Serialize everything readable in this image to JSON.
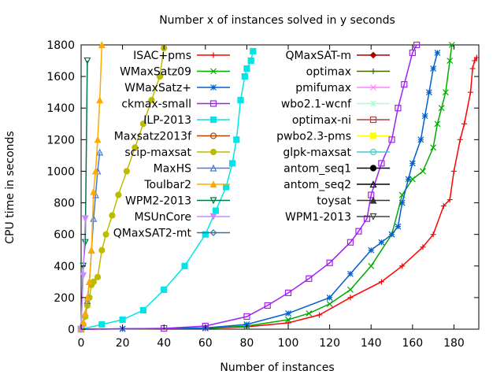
{
  "chart_data": {
    "type": "line",
    "title": "Number x of instances solved in y seconds",
    "xlabel": "Number of instances",
    "ylabel": "CPU time in seconds",
    "xlim": [
      0,
      192
    ],
    "ylim": [
      0,
      1800
    ],
    "xticks": [
      0,
      20,
      40,
      60,
      80,
      100,
      120,
      140,
      160,
      180
    ],
    "yticks": [
      0,
      200,
      400,
      600,
      800,
      1000,
      1200,
      1400,
      1600,
      1800
    ],
    "grid": false,
    "legend_position": "top, two columns",
    "series": [
      {
        "name": "ISAC+pms",
        "color": "#ff0000",
        "marker": "plus",
        "x": [
          0,
          20,
          60,
          80,
          100,
          115,
          130,
          145,
          155,
          165,
          170,
          175,
          178,
          180,
          183,
          185,
          188,
          189,
          190,
          191
        ],
        "y": [
          0,
          2,
          5,
          15,
          40,
          90,
          200,
          300,
          400,
          520,
          600,
          780,
          820,
          1000,
          1200,
          1300,
          1500,
          1650,
          1700,
          1720
        ]
      },
      {
        "name": "WMaxSatz09",
        "color": "#00aa00",
        "marker": "x",
        "x": [
          0,
          20,
          60,
          80,
          100,
          110,
          120,
          130,
          140,
          150,
          155,
          160,
          165,
          170,
          172,
          174,
          176,
          178,
          179
        ],
        "y": [
          0,
          2,
          5,
          20,
          60,
          100,
          160,
          250,
          400,
          600,
          850,
          950,
          1000,
          1150,
          1300,
          1400,
          1500,
          1700,
          1800
        ]
      },
      {
        "name": "WMaxSatz+",
        "color": "#0060d0",
        "marker": "star",
        "x": [
          0,
          20,
          60,
          80,
          100,
          120,
          130,
          140,
          145,
          150,
          153,
          155,
          158,
          160,
          164,
          166,
          168,
          170,
          172
        ],
        "y": [
          0,
          2,
          8,
          30,
          100,
          200,
          350,
          500,
          550,
          600,
          650,
          800,
          950,
          1050,
          1200,
          1350,
          1500,
          1650,
          1750
        ]
      },
      {
        "name": "ckmax-small",
        "color": "#a020f0",
        "marker": "square",
        "x": [
          0,
          40,
          60,
          80,
          90,
          100,
          110,
          120,
          130,
          134,
          138,
          140,
          145,
          150,
          153,
          156,
          160,
          162
        ],
        "y": [
          0,
          5,
          20,
          80,
          150,
          230,
          320,
          420,
          550,
          620,
          700,
          850,
          1050,
          1200,
          1400,
          1550,
          1750,
          1800
        ]
      },
      {
        "name": "ILP-2013",
        "color": "#00e6e6",
        "marker": "filled-square",
        "x": [
          0,
          10,
          20,
          30,
          40,
          50,
          60,
          65,
          70,
          73,
          75,
          77,
          79,
          80,
          82,
          83
        ],
        "y": [
          0,
          30,
          60,
          120,
          250,
          400,
          600,
          750,
          900,
          1050,
          1200,
          1450,
          1600,
          1650,
          1700,
          1760
        ]
      },
      {
        "name": "Maxsatz2013f",
        "color": "#b34700",
        "marker": "circle",
        "x": [],
        "y": []
      },
      {
        "name": "scip-maxsat",
        "color": "#bbbb00",
        "marker": "filled-circle",
        "x": [
          0,
          1,
          2,
          3,
          4,
          5,
          6,
          8,
          10,
          12,
          15,
          18,
          22,
          26,
          30,
          34,
          38,
          40
        ],
        "y": [
          0,
          30,
          80,
          150,
          200,
          280,
          300,
          330,
          500,
          600,
          720,
          850,
          1000,
          1150,
          1300,
          1450,
          1600,
          1780
        ]
      },
      {
        "name": "MaxHS",
        "color": "#4a78d8",
        "marker": "triangle",
        "x": [
          0,
          1,
          2,
          3,
          4,
          5,
          6,
          7,
          8,
          9
        ],
        "y": [
          0,
          40,
          100,
          180,
          300,
          500,
          700,
          850,
          1000,
          1120
        ]
      },
      {
        "name": "Toulbar2",
        "color": "#ffaa00",
        "marker": "filled-triangle",
        "x": [
          0,
          1,
          2,
          3,
          4,
          5,
          6,
          7,
          8,
          9,
          10
        ],
        "y": [
          0,
          40,
          100,
          200,
          300,
          500,
          870,
          1000,
          1200,
          1450,
          1800
        ]
      },
      {
        "name": "WPM2-2013",
        "color": "#007744",
        "marker": "inverted-triangle",
        "x": [
          0,
          1,
          2,
          3
        ],
        "y": [
          0,
          400,
          550,
          1700
        ]
      },
      {
        "name": "MSUnCore",
        "color": "#cc88ff",
        "marker": "filled-inverted-triangle",
        "x": [
          0,
          1,
          2
        ],
        "y": [
          0,
          340,
          700
        ]
      },
      {
        "name": "QMaxSAT2-mt",
        "color": "#3070a0",
        "marker": "diamond",
        "x": [],
        "y": []
      },
      {
        "name": "QMaxSAT-m",
        "color": "#aa0000",
        "marker": "filled-diamond",
        "x": [],
        "y": []
      },
      {
        "name": "optimax",
        "color": "#446600",
        "marker": "plus",
        "x": [],
        "y": []
      },
      {
        "name": "pmifumax",
        "color": "#ff80ff",
        "marker": "x",
        "x": [],
        "y": []
      },
      {
        "name": "wbo2.1-wcnf",
        "color": "#aaffcc",
        "marker": "star",
        "x": [],
        "y": []
      },
      {
        "name": "optimax-ni",
        "color": "#aa4444",
        "marker": "square",
        "x": [],
        "y": []
      },
      {
        "name": "pwbo2.3-pms",
        "color": "#ffff00",
        "marker": "filled-square",
        "x": [],
        "y": []
      },
      {
        "name": "glpk-maxsat",
        "color": "#44cccc",
        "marker": "circle",
        "x": [],
        "y": []
      },
      {
        "name": "antom_seq1",
        "color": "#000000",
        "marker": "filled-circle",
        "x": [],
        "y": []
      },
      {
        "name": "antom_seq2",
        "color": "#000000",
        "marker": "triangle",
        "x": [],
        "y": []
      },
      {
        "name": "toysat",
        "color": "#333333",
        "marker": "filled-triangle",
        "x": [],
        "y": []
      },
      {
        "name": "WPM1-2013",
        "color": "#444444",
        "marker": "inverted-triangle",
        "x": [],
        "y": []
      }
    ]
  }
}
